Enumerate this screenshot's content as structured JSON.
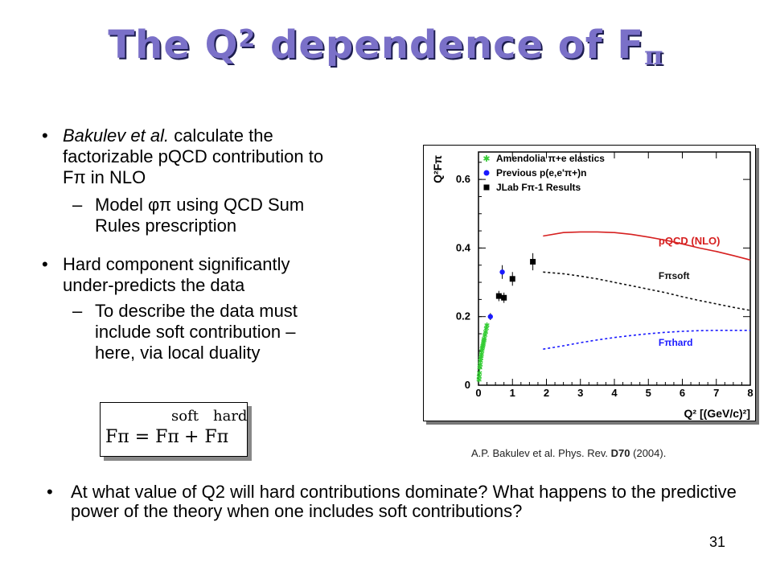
{
  "slide": {
    "title_main": "The Q",
    "title_sup": "2",
    "title_mid": " dependence of F",
    "title_sub": "π",
    "number": "31"
  },
  "bullets": [
    {
      "text": "Bakulev et al. calculate the factorizable pQCD contribution to Fπ in NLO",
      "lines": [
        "Bakulev et al. calculate the",
        "factorizable pQCD contribution to",
        "Fπ in NLO"
      ],
      "sub": [
        "Model φπ using QCD Sum",
        "Rules prescription"
      ]
    },
    {
      "lines": [
        "Hard component  significantly",
        "under-predicts the data"
      ],
      "sub": [
        "To describe the data must",
        "include soft contribution –",
        "here, via local duality"
      ]
    }
  ],
  "formula": {
    "lhs": "Fπ = Fπ",
    "soft": "soft",
    "plus": "+ Fπ",
    "hard": "hard"
  },
  "caption": {
    "prefix": "A.P. Bakulev et al. Phys. Rev. ",
    "bold": "D70",
    "suffix": " (2004)."
  },
  "bottom_question": "At what value of Q2 will hard contributions dominate? What happens to the predictive power of the theory when one includes soft contributions?",
  "chart_data": {
    "type": "scatter",
    "xlabel": "Q² [(GeV/c)²]",
    "ylabel": "Q²Fπ",
    "xlim": [
      0,
      8
    ],
    "ylim": [
      0,
      0.68
    ],
    "x_ticks": [
      "0",
      "1",
      "2",
      "3",
      "4",
      "5",
      "6",
      "7",
      "8"
    ],
    "y_ticks": [
      "0",
      "0.2",
      "0.4",
      "0.6"
    ],
    "legend_position": "top-left",
    "legend": [
      {
        "label": "Amendolia π+e elastics",
        "marker": "star",
        "color": "#33cc33"
      },
      {
        "label": "Previous p(e,e'π+)n",
        "marker": "circle",
        "color": "#1a1aff"
      },
      {
        "label": "JLab Fπ-1 Results",
        "marker": "square",
        "color": "#000000"
      }
    ],
    "series": [
      {
        "name": "Amendolia π+e elastics",
        "marker": "star",
        "color": "#33cc33",
        "x": [
          0.015,
          0.02,
          0.03,
          0.04,
          0.05,
          0.06,
          0.07,
          0.08,
          0.09,
          0.1,
          0.11,
          0.12,
          0.13,
          0.14,
          0.15,
          0.16,
          0.17,
          0.19,
          0.21,
          0.23,
          0.25
        ],
        "y": [
          0.015,
          0.025,
          0.035,
          0.05,
          0.06,
          0.07,
          0.078,
          0.085,
          0.09,
          0.1,
          0.105,
          0.11,
          0.115,
          0.12,
          0.125,
          0.13,
          0.135,
          0.145,
          0.155,
          0.165,
          0.175
        ]
      },
      {
        "name": "Previous p(e,e'π+)n",
        "marker": "circle",
        "color": "#1a1aff",
        "x": [
          0.35,
          0.7
        ],
        "y": [
          0.2,
          0.33
        ],
        "err": [
          0.01,
          0.02
        ]
      },
      {
        "name": "JLab Fπ-1 Results",
        "marker": "square",
        "color": "#000000",
        "x": [
          0.6,
          0.75,
          1.0,
          1.6
        ],
        "y": [
          0.26,
          0.255,
          0.31,
          0.36
        ],
        "err": [
          0.015,
          0.015,
          0.02,
          0.025
        ]
      }
    ],
    "curves": [
      {
        "name": "pQCD (NLO)",
        "color": "#d62020",
        "style": "solid",
        "x": [
          1.9,
          2.5,
          3.0,
          3.5,
          4.0,
          4.5,
          5.0,
          5.5,
          6.0,
          6.5,
          7.0,
          7.5,
          8.0
        ],
        "y": [
          0.435,
          0.445,
          0.447,
          0.447,
          0.445,
          0.44,
          0.432,
          0.423,
          0.412,
          0.4,
          0.39,
          0.378,
          0.365
        ]
      },
      {
        "name": "Fπsoft",
        "color": "#111111",
        "style": "dashed",
        "x": [
          1.9,
          2.5,
          3.0,
          3.5,
          4.0,
          4.5,
          5.0,
          5.5,
          6.0,
          6.5,
          7.0,
          7.5,
          8.0
        ],
        "y": [
          0.33,
          0.325,
          0.318,
          0.31,
          0.3,
          0.29,
          0.28,
          0.27,
          0.258,
          0.247,
          0.237,
          0.227,
          0.218
        ]
      },
      {
        "name": "Fπhard",
        "color": "#1a1aff",
        "style": "dashed",
        "x": [
          1.9,
          2.5,
          3.0,
          3.5,
          4.0,
          4.5,
          5.0,
          5.5,
          6.0,
          6.5,
          7.0,
          7.5,
          8.0
        ],
        "y": [
          0.105,
          0.115,
          0.124,
          0.132,
          0.139,
          0.145,
          0.15,
          0.154,
          0.157,
          0.159,
          0.16,
          0.16,
          0.16
        ]
      }
    ],
    "annotations": [
      "pQCD (NLO)",
      "Fπsoft",
      "Fπhard"
    ]
  }
}
